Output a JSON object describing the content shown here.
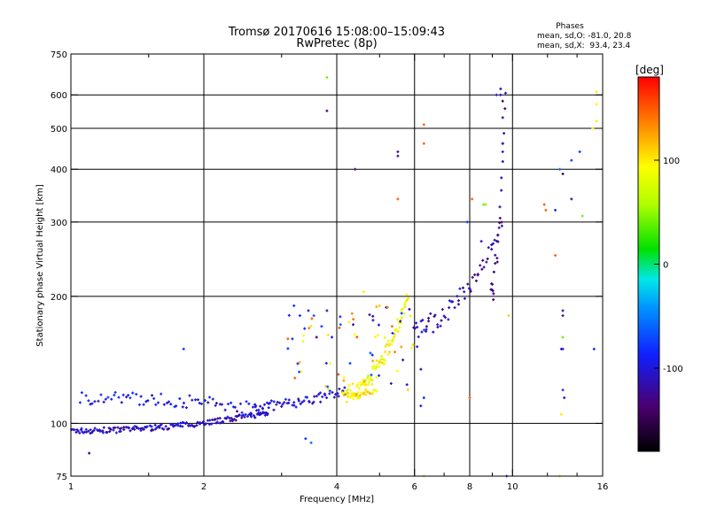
{
  "chart_data": {
    "type": "scatter",
    "title": "Tromsø 20170616 15:08:00–15:09:43",
    "subtitle": "RwPretec (8p)",
    "xlabel": "Frequency [MHz]",
    "ylabel": "Stationary phase Virtual Height [km]",
    "x_scale": "log",
    "y_scale": "log",
    "xlim": [
      1,
      16
    ],
    "ylim": [
      75,
      750
    ],
    "x_ticks": [
      1,
      2,
      4,
      6,
      8,
      10,
      16
    ],
    "x_tick_labels": [
      "1",
      "2",
      "4",
      "6",
      "8",
      "10",
      "16"
    ],
    "x_minor_ticks": [
      1.5,
      3,
      5,
      7,
      9,
      12,
      14
    ],
    "y_ticks": [
      75,
      100,
      200,
      300,
      400,
      500,
      600,
      750
    ],
    "y_tick_labels": [
      "75",
      "100",
      "200",
      "300",
      "400",
      "500",
      "600",
      "750"
    ],
    "grid_x": [
      2,
      4,
      6,
      8,
      10
    ],
    "grid_y": [
      100,
      200,
      300,
      400,
      500,
      600
    ],
    "legend": {
      "header": "Phases",
      "line1": "mean, sd,O: -81.0, 20.8",
      "line2": "mean, sd,X:  93.4, 23.4"
    },
    "colorbar": {
      "label": "[deg]",
      "range": [
        -180,
        180
      ],
      "tick_values": [
        100,
        0,
        -100
      ],
      "tick_labels": [
        "100",
        "0",
        "-100"
      ]
    },
    "series": [
      {
        "name": "lower-trace-O",
        "segments": [
          {
            "f0": 1.0,
            "f1": 2.8,
            "h0": 96,
            "h1": 106,
            "sd": 1.5,
            "phase": -110,
            "n": 170
          },
          {
            "f0": 2.6,
            "f1": 4.2,
            "h0": 110,
            "h1": 120,
            "sd": 3,
            "phase": -100,
            "n": 60
          },
          {
            "f0": 1.05,
            "f1": 2.8,
            "h0": 115,
            "h1": 108,
            "sd": 4,
            "phase": -95,
            "n": 75
          },
          {
            "f0": 4.2,
            "f1": 5.8,
            "h0": 118,
            "h1": 200,
            "sd": 6,
            "phase": 90,
            "n": 95
          },
          {
            "f0": 4.1,
            "f1": 4.9,
            "h0": 117,
            "h1": 119,
            "sd": 1.5,
            "phase": 105,
            "n": 30
          }
        ]
      },
      {
        "name": "upper-trace",
        "segments": [
          {
            "f0": 6.0,
            "f1": 9.5,
            "h0": 170,
            "h1": 300,
            "sd": 10,
            "phase": -120,
            "n": 60
          },
          {
            "f0": 8.9,
            "f1": 9.6,
            "h0": 200,
            "h1": 600,
            "sd": 15,
            "phase": -130,
            "n": 24
          }
        ]
      },
      {
        "name": "scatter-cloud",
        "cloud": {
          "f0": 3.1,
          "f1": 6.4,
          "h0": 120,
          "h1": 190,
          "n": 70
        }
      },
      {
        "name": "outliers",
        "points": [
          [
            3.8,
            660,
            40
          ],
          [
            3.8,
            550,
            -130
          ],
          [
            4.4,
            400,
            -130
          ],
          [
            5.5,
            440,
            -120
          ],
          [
            5.5,
            430,
            -120
          ],
          [
            6.3,
            510,
            150
          ],
          [
            6.3,
            460,
            150
          ],
          [
            5.5,
            340,
            150
          ],
          [
            9.4,
            620,
            -120
          ],
          [
            9.4,
            600,
            -120
          ],
          [
            9.2,
            600,
            -100
          ],
          [
            9.5,
            580,
            -150
          ],
          [
            9.5,
            530,
            -120
          ],
          [
            9.5,
            460,
            -100
          ],
          [
            9.5,
            440,
            -100
          ],
          [
            14.2,
            440,
            -80
          ],
          [
            13.6,
            420,
            -80
          ],
          [
            12.8,
            400,
            -60
          ],
          [
            13.0,
            390,
            -150
          ],
          [
            13.6,
            340,
            -120
          ],
          [
            12.5,
            320,
            -80
          ],
          [
            14.4,
            310,
            40
          ],
          [
            11.8,
            330,
            150
          ],
          [
            11.9,
            320,
            150
          ],
          [
            15.5,
            610,
            100
          ],
          [
            15.5,
            570,
            100
          ],
          [
            15.5,
            520,
            100
          ],
          [
            15.2,
            500,
            100
          ],
          [
            15.3,
            150,
            -90
          ],
          [
            13.0,
            185,
            -120
          ],
          [
            13.0,
            180,
            -120
          ],
          [
            13.0,
            160,
            40
          ],
          [
            12.9,
            150,
            -100
          ],
          [
            13.0,
            150,
            -100
          ],
          [
            13.0,
            120,
            -80
          ],
          [
            13.1,
            115,
            -100
          ],
          [
            12.9,
            105,
            100
          ],
          [
            12.5,
            250,
            150
          ],
          [
            9.8,
            180,
            110
          ],
          [
            8.6,
            330,
            40
          ],
          [
            8.7,
            330,
            50
          ],
          [
            8.5,
            270,
            -120
          ],
          [
            8.1,
            340,
            150
          ],
          [
            7.9,
            300,
            -80
          ],
          [
            8.0,
            115,
            150
          ],
          [
            6.3,
            115,
            -80
          ],
          [
            6.2,
            110,
            -100
          ],
          [
            6.3,
            75,
            60
          ],
          [
            9.7,
            75,
            -80
          ],
          [
            12.8,
            75,
            100
          ],
          [
            1.8,
            150,
            -80
          ],
          [
            1.1,
            85,
            -130
          ],
          [
            3.3,
            180,
            -90
          ],
          [
            3.45,
            185,
            -100
          ],
          [
            3.55,
            180,
            -70
          ],
          [
            3.4,
            92,
            -80
          ],
          [
            3.5,
            90,
            -60
          ],
          [
            3.8,
            185,
            -120
          ],
          [
            3.2,
            190,
            -80
          ],
          [
            3.5,
            170,
            60
          ],
          [
            3.6,
            160,
            -140
          ],
          [
            3.9,
            160,
            -90
          ],
          [
            5.0,
            190,
            110
          ],
          [
            4.6,
            205,
            100
          ]
        ]
      }
    ]
  }
}
